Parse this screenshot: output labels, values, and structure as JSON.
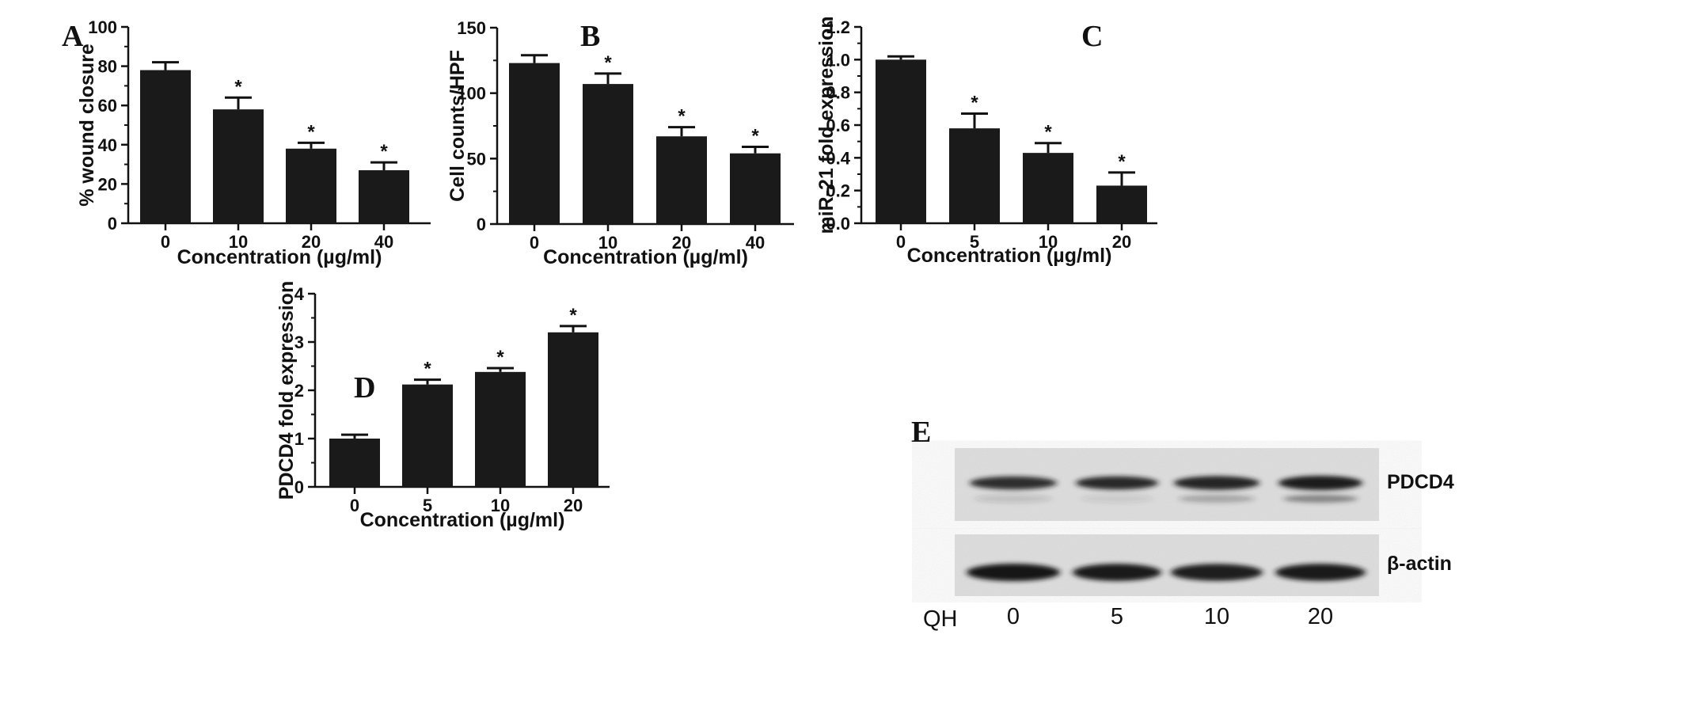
{
  "chart_data": [
    {
      "panel": "A",
      "type": "bar",
      "xlabel": "Concentration (µg/ml)",
      "ylabel": "% wound closure",
      "categories": [
        "0",
        "10",
        "20",
        "40"
      ],
      "values": [
        78,
        58,
        38,
        27
      ],
      "errors": [
        4,
        6,
        3,
        4
      ],
      "significant": [
        false,
        true,
        true,
        true
      ],
      "ylim": [
        0,
        100
      ],
      "yticks": [
        "0",
        "20",
        "40",
        "60",
        "80",
        "100"
      ],
      "bar_color": "#1a1a1a"
    },
    {
      "panel": "B",
      "type": "bar",
      "xlabel": "Concentration (µg/ml)",
      "ylabel": "Cell counts/HPF",
      "categories": [
        "0",
        "10",
        "20",
        "40"
      ],
      "values": [
        123,
        107,
        67,
        54
      ],
      "errors": [
        6,
        8,
        7,
        5
      ],
      "significant": [
        false,
        true,
        true,
        true
      ],
      "ylim": [
        0,
        150
      ],
      "yticks": [
        "0",
        "50",
        "100",
        "150"
      ],
      "bar_color": "#1a1a1a"
    },
    {
      "panel": "C",
      "type": "bar",
      "xlabel": "Concentration (µg/ml)",
      "ylabel": "miR-21 fold expression",
      "categories": [
        "0",
        "5",
        "10",
        "20"
      ],
      "values": [
        1.0,
        0.58,
        0.43,
        0.23
      ],
      "errors": [
        0.02,
        0.09,
        0.06,
        0.08
      ],
      "significant": [
        false,
        true,
        true,
        true
      ],
      "ylim": [
        0,
        1.2
      ],
      "yticks": [
        "0.0",
        "0.2",
        "0.4",
        "0.6",
        "0.8",
        "1.0",
        "1.2"
      ],
      "bar_color": "#1a1a1a"
    },
    {
      "panel": "D",
      "type": "bar",
      "xlabel": "Concentration (µg/ml)",
      "ylabel": "PDCD4 fold expression",
      "categories": [
        "0",
        "5",
        "10",
        "20"
      ],
      "values": [
        1.0,
        2.12,
        2.38,
        3.2
      ],
      "errors": [
        0.08,
        0.1,
        0.08,
        0.13
      ],
      "significant": [
        false,
        true,
        true,
        true
      ],
      "ylim": [
        0,
        4
      ],
      "yticks": [
        "0",
        "1",
        "2",
        "3",
        "4"
      ],
      "bar_color": "#1a1a1a"
    }
  ],
  "significance_marker": "*",
  "blot": {
    "panel": "E",
    "rows": [
      {
        "label": "PDCD4",
        "band_strength": [
          0.75,
          0.8,
          0.9,
          1.0
        ],
        "lower_band_strength": [
          0.15,
          0.1,
          0.3,
          0.5
        ]
      },
      {
        "label": "β-actin",
        "band_strength": [
          1.0,
          0.95,
          0.9,
          0.95
        ]
      }
    ],
    "lane_prefix": "QH",
    "lanes": [
      "0",
      "5",
      "10",
      "20"
    ]
  }
}
